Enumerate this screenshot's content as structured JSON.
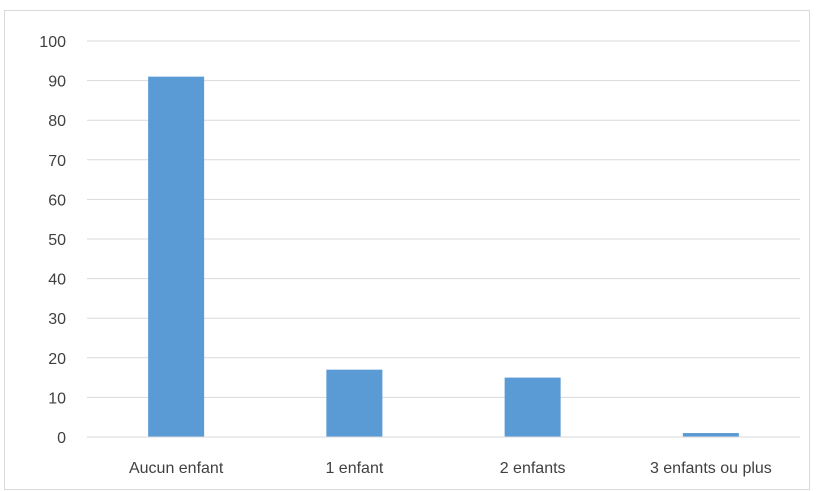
{
  "chart_data": {
    "type": "bar",
    "categories": [
      "Aucun enfant",
      "1 enfant",
      "2 enfants",
      "3 enfants ou plus"
    ],
    "values": [
      91,
      17,
      15,
      1
    ],
    "ylim": [
      0,
      100
    ],
    "yticks": [
      0,
      10,
      20,
      30,
      40,
      50,
      60,
      70,
      80,
      90,
      100
    ],
    "grid": true,
    "legend": "none",
    "bar_color": "#5b9bd5",
    "grid_color": "#d9d9d9",
    "text_color": "#404040"
  }
}
